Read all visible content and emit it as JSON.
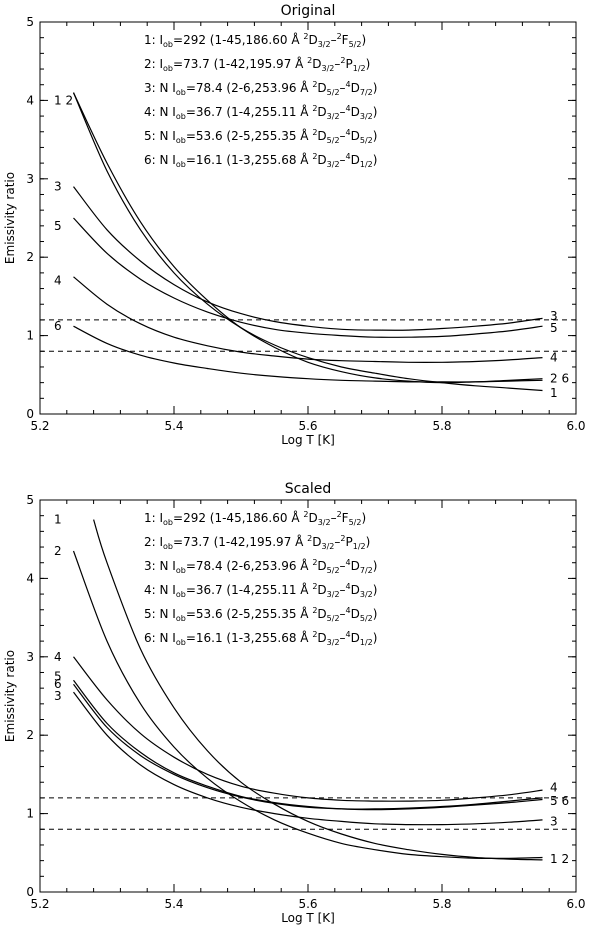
{
  "chart_data": [
    {
      "type": "line",
      "title": "Original",
      "xlabel": "Log T [K]",
      "ylabel": "Emissivity ratio",
      "xlim": [
        5.2,
        6.0
      ],
      "ylim": [
        0,
        5
      ],
      "xticks": [
        "5.2",
        "5.4",
        "5.6",
        "5.8",
        "6.0"
      ],
      "yticks": [
        "0",
        "1",
        "2",
        "3",
        "4",
        "5"
      ],
      "reference_lines": [
        0.8,
        1.2
      ],
      "legend": [
        "1:  I_ob=292 (1-45,186.60 Å ²D3/2-²F5/2)",
        "2:  I_ob=73.7 (1-42,195.97 Å ²D3/2-²P1/2)",
        "3: N I_ob=78.4 (2-6,253.96 Å ²D5/2-⁴D7/2)",
        "4: N I_ob=36.7 (1-4,255.11 Å ²D3/2-⁴D3/2)",
        "5: N I_ob=53.6 (2-5,255.35 Å ²D5/2-⁴D5/2)",
        "6: N I_ob=16.1 (1-3,255.68 Å ²D3/2-⁴D1/2)"
      ],
      "series": [
        {
          "name": "1",
          "x": [
            5.25,
            5.3,
            5.35,
            5.4,
            5.45,
            5.5,
            5.55,
            5.6,
            5.65,
            5.7,
            5.75,
            5.8,
            5.85,
            5.9,
            5.95
          ],
          "y": [
            4.1,
            3.1,
            2.35,
            1.8,
            1.4,
            1.1,
            0.88,
            0.72,
            0.6,
            0.52,
            0.45,
            0.4,
            0.36,
            0.33,
            0.3
          ]
        },
        {
          "name": "2",
          "x": [
            5.25,
            5.3,
            5.35,
            5.4,
            5.45,
            5.5,
            5.55,
            5.6,
            5.65,
            5.7,
            5.75,
            5.8,
            5.85,
            5.9,
            5.95
          ],
          "y": [
            4.1,
            3.2,
            2.45,
            1.88,
            1.45,
            1.1,
            0.85,
            0.66,
            0.54,
            0.46,
            0.42,
            0.4,
            0.41,
            0.43,
            0.45
          ]
        },
        {
          "name": "3",
          "x": [
            5.25,
            5.3,
            5.35,
            5.4,
            5.45,
            5.5,
            5.55,
            5.6,
            5.65,
            5.7,
            5.75,
            5.8,
            5.85,
            5.9,
            5.95
          ],
          "y": [
            2.9,
            2.35,
            1.95,
            1.65,
            1.43,
            1.28,
            1.18,
            1.12,
            1.08,
            1.07,
            1.07,
            1.09,
            1.12,
            1.16,
            1.22
          ]
        },
        {
          "name": "4",
          "x": [
            5.25,
            5.3,
            5.35,
            5.4,
            5.45,
            5.5,
            5.55,
            5.6,
            5.65,
            5.7,
            5.75,
            5.8,
            5.85,
            5.9,
            5.95
          ],
          "y": [
            1.75,
            1.4,
            1.15,
            0.98,
            0.87,
            0.79,
            0.74,
            0.7,
            0.68,
            0.67,
            0.66,
            0.66,
            0.67,
            0.69,
            0.72
          ]
        },
        {
          "name": "5",
          "x": [
            5.25,
            5.3,
            5.35,
            5.4,
            5.45,
            5.5,
            5.55,
            5.6,
            5.65,
            5.7,
            5.75,
            5.8,
            5.85,
            5.9,
            5.95
          ],
          "y": [
            2.5,
            2.05,
            1.72,
            1.48,
            1.3,
            1.17,
            1.08,
            1.03,
            1.0,
            0.98,
            0.98,
            0.99,
            1.02,
            1.06,
            1.12
          ]
        },
        {
          "name": "6",
          "x": [
            5.25,
            5.3,
            5.35,
            5.4,
            5.45,
            5.5,
            5.55,
            5.6,
            5.65,
            5.7,
            5.75,
            5.8,
            5.85,
            5.9,
            5.95
          ],
          "y": [
            1.12,
            0.9,
            0.75,
            0.65,
            0.58,
            0.52,
            0.48,
            0.45,
            0.43,
            0.42,
            0.41,
            0.41,
            0.41,
            0.42,
            0.43
          ]
        }
      ],
      "end_labels": [
        {
          "text": "1 2",
          "side": "left",
          "y": 4.0
        },
        {
          "text": "3",
          "side": "left",
          "y": 2.9
        },
        {
          "text": "5",
          "side": "left",
          "y": 2.4
        },
        {
          "text": "4",
          "side": "left",
          "y": 1.7
        },
        {
          "text": "6",
          "side": "left",
          "y": 1.12
        },
        {
          "text": "3",
          "side": "right",
          "y": 1.25
        },
        {
          "text": "5",
          "side": "right",
          "y": 1.1
        },
        {
          "text": "4",
          "side": "right",
          "y": 0.72
        },
        {
          "text": "2 6",
          "side": "right",
          "y": 0.45
        },
        {
          "text": "1",
          "side": "right",
          "y": 0.27
        }
      ]
    },
    {
      "type": "line",
      "title": "Scaled",
      "xlabel": "Log T [K]",
      "ylabel": "Emissivity ratio",
      "xlim": [
        5.2,
        6.0
      ],
      "ylim": [
        0,
        5
      ],
      "xticks": [
        "5.2",
        "5.4",
        "5.6",
        "5.8",
        "6.0"
      ],
      "yticks": [
        "0",
        "1",
        "2",
        "3",
        "4",
        "5"
      ],
      "reference_lines": [
        0.8,
        1.2
      ],
      "legend": [
        "1:  I_ob=292 (1-45,186.60 Å ²D3/2-²F5/2)",
        "2:  I_ob=73.7 (1-42,195.97 Å ²D3/2-²P1/2)",
        "3: N I_ob=78.4 (2-6,253.96 Å ²D5/2-⁴D7/2)",
        "4: N I_ob=36.7 (1-4,255.11 Å ²D3/2-⁴D3/2)",
        "5: N I_ob=53.6 (2-5,255.35 Å ²D5/2-⁴D5/2)",
        "6: N I_ob=16.1 (1-3,255.68 Å ²D3/2-⁴D1/2)"
      ],
      "series": [
        {
          "name": "1",
          "x": [
            5.28,
            5.3,
            5.35,
            5.4,
            5.45,
            5.5,
            5.55,
            5.6,
            5.65,
            5.7,
            5.75,
            5.8,
            5.85,
            5.9,
            5.95
          ],
          "y": [
            4.75,
            4.2,
            3.1,
            2.35,
            1.8,
            1.4,
            1.12,
            0.9,
            0.74,
            0.62,
            0.54,
            0.48,
            0.44,
            0.42,
            0.41
          ]
        },
        {
          "name": "2",
          "x": [
            5.25,
            5.3,
            5.35,
            5.4,
            5.45,
            5.5,
            5.55,
            5.6,
            5.65,
            5.7,
            5.75,
            5.8,
            5.85,
            5.9,
            5.95
          ],
          "y": [
            4.35,
            3.2,
            2.4,
            1.85,
            1.45,
            1.15,
            0.92,
            0.75,
            0.62,
            0.54,
            0.48,
            0.45,
            0.43,
            0.43,
            0.44
          ]
        },
        {
          "name": "3",
          "x": [
            5.25,
            5.3,
            5.35,
            5.4,
            5.45,
            5.5,
            5.55,
            5.6,
            5.65,
            5.7,
            5.75,
            5.8,
            5.85,
            5.9,
            5.95
          ],
          "y": [
            2.55,
            2.0,
            1.62,
            1.37,
            1.2,
            1.08,
            1.0,
            0.94,
            0.9,
            0.87,
            0.86,
            0.86,
            0.87,
            0.89,
            0.92
          ]
        },
        {
          "name": "4",
          "x": [
            5.25,
            5.3,
            5.35,
            5.4,
            5.45,
            5.5,
            5.55,
            5.6,
            5.65,
            5.7,
            5.75,
            5.8,
            5.85,
            5.9,
            5.95
          ],
          "y": [
            3.0,
            2.45,
            2.02,
            1.72,
            1.5,
            1.35,
            1.26,
            1.2,
            1.17,
            1.16,
            1.16,
            1.17,
            1.2,
            1.24,
            1.3
          ]
        },
        {
          "name": "5",
          "x": [
            5.25,
            5.3,
            5.35,
            5.4,
            5.45,
            5.5,
            5.55,
            5.6,
            5.65,
            5.7,
            5.75,
            5.8,
            5.85,
            5.9,
            5.95
          ],
          "y": [
            2.7,
            2.15,
            1.78,
            1.52,
            1.35,
            1.22,
            1.14,
            1.09,
            1.06,
            1.05,
            1.06,
            1.08,
            1.11,
            1.14,
            1.18
          ]
        },
        {
          "name": "6",
          "x": [
            5.25,
            5.3,
            5.35,
            5.4,
            5.45,
            5.5,
            5.55,
            5.6,
            5.65,
            5.7,
            5.75,
            5.8,
            5.85,
            5.9,
            5.95
          ],
          "y": [
            2.65,
            2.1,
            1.74,
            1.5,
            1.33,
            1.21,
            1.13,
            1.08,
            1.06,
            1.06,
            1.07,
            1.09,
            1.12,
            1.16,
            1.2
          ]
        }
      ],
      "end_labels": [
        {
          "text": "1",
          "side": "left",
          "y": 4.75
        },
        {
          "text": "2",
          "side": "left",
          "y": 4.35
        },
        {
          "text": "4",
          "side": "left",
          "y": 3.0
        },
        {
          "text": "5",
          "side": "left",
          "y": 2.75
        },
        {
          "text": "6",
          "side": "left",
          "y": 2.65
        },
        {
          "text": "3",
          "side": "left",
          "y": 2.5
        },
        {
          "text": "4",
          "side": "right",
          "y": 1.33
        },
        {
          "text": "5 6",
          "side": "right",
          "y": 1.16
        },
        {
          "text": "3",
          "side": "right",
          "y": 0.9
        },
        {
          "text": "1 2",
          "side": "right",
          "y": 0.42
        }
      ]
    }
  ]
}
